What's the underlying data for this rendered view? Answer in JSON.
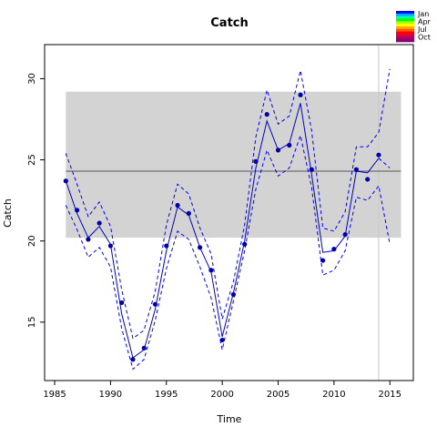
{
  "chart_data": {
    "type": "line",
    "title": "Catch",
    "xlabel": "Time",
    "ylabel": "Catch",
    "xlim": [
      1984.1,
      2017.1
    ],
    "ylim": [
      11.4,
      32.1
    ],
    "xticks": [
      1985,
      1990,
      1995,
      2000,
      2005,
      2010,
      2015
    ],
    "yticks": [
      15,
      20,
      25,
      30
    ],
    "band": {
      "x": [
        1986,
        2016
      ],
      "y": [
        20.2,
        29.2
      ],
      "color": "#d3d3d3"
    },
    "hline": {
      "y": 24.3,
      "color": "#808080"
    },
    "vline": {
      "x": 2014,
      "color": "#c8c8c8"
    },
    "series": [
      {
        "role": "fit",
        "color": "#0000cc",
        "x": [
          1986,
          1987,
          1988,
          1989,
          1990,
          1991,
          1992,
          1993,
          1994,
          1995,
          1996,
          1997,
          1998,
          1999,
          2000,
          2001,
          2002,
          2003,
          2004,
          2005,
          2006,
          2007,
          2008,
          2009,
          2010,
          2011,
          2012,
          2013,
          2014
        ],
        "values": [
          23.7,
          21.7,
          20.2,
          20.9,
          19.8,
          15.5,
          12.8,
          13.3,
          15.8,
          19.4,
          22.1,
          21.6,
          19.6,
          18.1,
          14.1,
          16.8,
          20.0,
          24.5,
          27.4,
          25.6,
          26.0,
          28.5,
          24.1,
          19.3,
          19.4,
          20.3,
          24.3,
          24.2,
          25.1
        ]
      },
      {
        "role": "upper",
        "color": "#0000ff",
        "x": [
          1986,
          1987,
          1988,
          1989,
          1990,
          1991,
          1992,
          1993,
          1994,
          1995,
          1996,
          1997,
          1998,
          1999,
          2000,
          2001,
          2002,
          2003,
          2004,
          2005,
          2006,
          2007,
          2008,
          2009,
          2010,
          2011,
          2012,
          2013,
          2014,
          2015
        ],
        "values": [
          25.4,
          23.5,
          21.5,
          22.4,
          20.9,
          17.0,
          14.0,
          14.5,
          16.9,
          21.0,
          23.5,
          22.9,
          20.8,
          19.2,
          15.2,
          17.5,
          21.0,
          26.4,
          29.3,
          27.2,
          27.7,
          30.5,
          26.8,
          20.8,
          20.6,
          21.8,
          25.8,
          25.8,
          26.7,
          30.6
        ]
      },
      {
        "role": "lower",
        "color": "#0000ff",
        "x": [
          1986,
          1987,
          1988,
          1989,
          1990,
          1991,
          1992,
          1993,
          1994,
          1995,
          1996,
          1997,
          1998,
          1999,
          2000,
          2001,
          2002,
          2003,
          2004,
          2005,
          2006,
          2007,
          2008,
          2009,
          2010,
          2011,
          2012,
          2013,
          2014,
          2015
        ],
        "values": [
          22.2,
          20.7,
          19.0,
          19.6,
          18.4,
          14.6,
          12.1,
          12.7,
          15.1,
          18.3,
          20.6,
          20.1,
          18.4,
          16.5,
          13.3,
          16.3,
          19.4,
          23.2,
          25.6,
          24.0,
          24.5,
          26.5,
          23.3,
          17.9,
          18.2,
          19.4,
          22.7,
          22.5,
          23.4,
          19.8
        ]
      },
      {
        "role": "upper-tail",
        "color": "#0000ff",
        "x": [
          2014,
          2015
        ],
        "values": [
          25.1,
          24.5
        ]
      }
    ],
    "points": {
      "color": "#0000aa",
      "x": [
        1986,
        1987,
        1988,
        1989,
        1990,
        1991,
        1992,
        1993,
        1994,
        1995,
        1996,
        1997,
        1998,
        1999,
        2000,
        2001,
        2002,
        2003,
        2004,
        2005,
        2006,
        2007,
        2008,
        2009,
        2010,
        2011,
        2012,
        2013,
        2014
      ],
      "values": [
        23.7,
        21.9,
        20.1,
        21.1,
        19.7,
        16.2,
        12.7,
        13.4,
        16.1,
        19.7,
        22.2,
        21.7,
        19.6,
        18.2,
        13.9,
        16.7,
        19.8,
        24.9,
        27.8,
        25.6,
        25.9,
        29.0,
        24.4,
        18.8,
        19.5,
        20.4,
        24.4,
        23.8,
        25.3
      ]
    },
    "legend": {
      "position": "top-right",
      "labels": [
        "Jan",
        "Apr",
        "Jul",
        "Oct"
      ],
      "colors": [
        "#0000ff",
        "#00aaff",
        "#00ffaa",
        "#00ff00",
        "#aaff00",
        "#ffff00",
        "#ffaa00",
        "#ff5500",
        "#ff0000",
        "#dd0044",
        "#aa0066",
        "#880077"
      ]
    }
  }
}
